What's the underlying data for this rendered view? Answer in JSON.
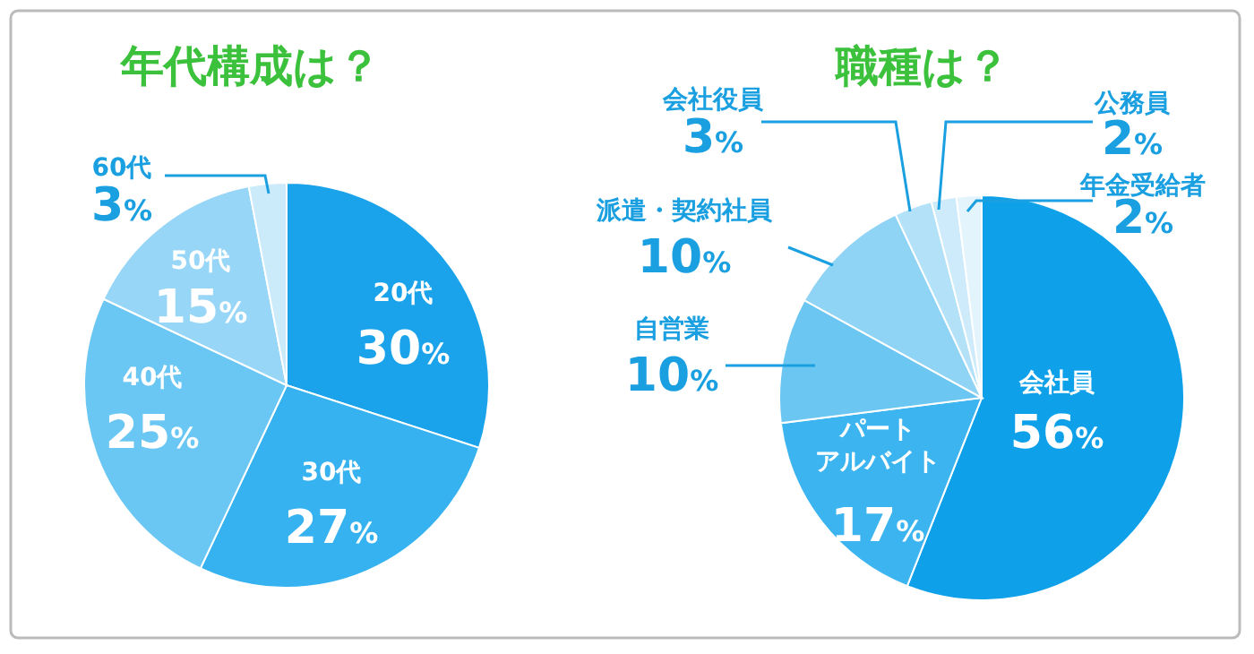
{
  "chart_data": [
    {
      "type": "pie",
      "title": "年代構成は？",
      "categories": [
        "20代",
        "30代",
        "40代",
        "50代",
        "60代"
      ],
      "values": [
        30,
        27,
        25,
        15,
        3
      ],
      "value_labels": [
        "30%",
        "27%",
        "25%",
        "15%",
        "3%"
      ],
      "colors": [
        "#1aa3ea",
        "#35b2ef",
        "#6ac6f3",
        "#97d6f6",
        "#cbeafa"
      ]
    },
    {
      "type": "pie",
      "title": "職種は？",
      "categories": [
        "会社員",
        "パートアルバイト",
        "自営業",
        "派遣・契約社員",
        "会社役員",
        "公務員",
        "年金受給者"
      ],
      "values": [
        56,
        17,
        10,
        10,
        3,
        2,
        2
      ],
      "value_labels": [
        "56%",
        "17%",
        "10%",
        "10%",
        "3%",
        "2%",
        "2%"
      ],
      "colors": [
        "#0fa0ea",
        "#3bb4ef",
        "#6cc6f2",
        "#8fd3f5",
        "#b3e1f8",
        "#cdebfa",
        "#e3f4fc"
      ]
    }
  ]
}
